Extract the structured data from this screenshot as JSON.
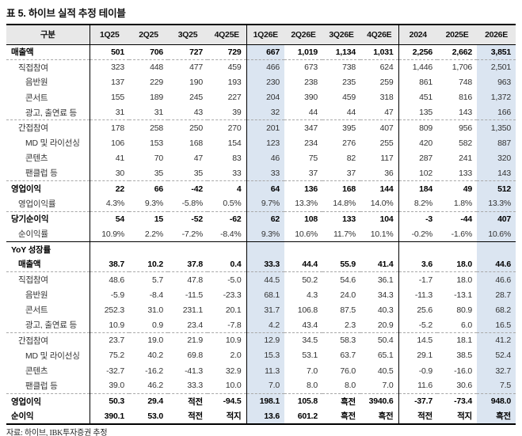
{
  "title": "표 5. 하이브 실적 추정 테이블",
  "source": "자료: 하이브, IBK투자증권 추정",
  "colors": {
    "highlight": "#dbe5f1",
    "header_bg": "#e8e8e8",
    "border": "#000000"
  },
  "table": {
    "columns": [
      "구분",
      "1Q25",
      "2Q25",
      "3Q25",
      "4Q25E",
      "1Q26E",
      "2Q26E",
      "3Q26E",
      "4Q26E",
      "2024",
      "2025E",
      "2026E"
    ],
    "highlight_columns": [
      "4Q25E",
      "2025E",
      "2026E"
    ],
    "rows": [
      {
        "label": "매출액",
        "indent": 0,
        "bold": true,
        "top": "none",
        "values": [
          "501",
          "706",
          "727",
          "729",
          "667",
          "1,019",
          "1,134",
          "1,031",
          "2,256",
          "2,662",
          "3,851"
        ]
      },
      {
        "label": "직접참여",
        "indent": 1,
        "bold": false,
        "top": "dashed",
        "values": [
          "323",
          "448",
          "477",
          "459",
          "466",
          "673",
          "738",
          "624",
          "1,446",
          "1,706",
          "2,501"
        ]
      },
      {
        "label": "음반원",
        "indent": 2,
        "bold": false,
        "top": "none",
        "values": [
          "137",
          "229",
          "190",
          "193",
          "230",
          "238",
          "235",
          "259",
          "861",
          "748",
          "963"
        ]
      },
      {
        "label": "콘서트",
        "indent": 2,
        "bold": false,
        "top": "none",
        "values": [
          "155",
          "189",
          "245",
          "227",
          "204",
          "390",
          "459",
          "318",
          "451",
          "816",
          "1,372"
        ]
      },
      {
        "label": "광고, 출연료 등",
        "indent": 2,
        "bold": false,
        "top": "none",
        "values": [
          "31",
          "31",
          "43",
          "39",
          "32",
          "44",
          "44",
          "47",
          "135",
          "143",
          "166"
        ]
      },
      {
        "label": "간접참여",
        "indent": 1,
        "bold": false,
        "top": "dashed",
        "values": [
          "178",
          "258",
          "250",
          "270",
          "201",
          "347",
          "395",
          "407",
          "809",
          "956",
          "1,350"
        ]
      },
      {
        "label": "MD 및 라이선싱",
        "indent": 2,
        "bold": false,
        "top": "none",
        "values": [
          "106",
          "153",
          "168",
          "154",
          "123",
          "234",
          "276",
          "255",
          "420",
          "582",
          "887"
        ]
      },
      {
        "label": "콘텐츠",
        "indent": 2,
        "bold": false,
        "top": "none",
        "values": [
          "41",
          "70",
          "47",
          "83",
          "46",
          "75",
          "82",
          "117",
          "287",
          "241",
          "320"
        ]
      },
      {
        "label": "팬클럽 등",
        "indent": 2,
        "bold": false,
        "top": "none",
        "values": [
          "30",
          "35",
          "35",
          "33",
          "33",
          "37",
          "37",
          "36",
          "102",
          "133",
          "143"
        ]
      },
      {
        "label": "영업이익",
        "indent": 0,
        "bold": true,
        "top": "dashed",
        "values": [
          "22",
          "66",
          "-42",
          "4",
          "64",
          "136",
          "168",
          "144",
          "184",
          "49",
          "512"
        ]
      },
      {
        "label": "영업이익률",
        "indent": 1,
        "bold": false,
        "top": "none",
        "values": [
          "4.3%",
          "9.3%",
          "-5.8%",
          "0.5%",
          "9.7%",
          "13.3%",
          "14.8%",
          "14.0%",
          "8.2%",
          "1.8%",
          "13.3%"
        ]
      },
      {
        "label": "당기순이익",
        "indent": 0,
        "bold": true,
        "top": "dashed",
        "values": [
          "54",
          "15",
          "-52",
          "-62",
          "62",
          "108",
          "133",
          "104",
          "-3",
          "-44",
          "407"
        ]
      },
      {
        "label": "순이익률",
        "indent": 1,
        "bold": false,
        "top": "none",
        "values": [
          "10.9%",
          "2.2%",
          "-7.2%",
          "-8.4%",
          "9.3%",
          "10.6%",
          "11.7%",
          "10.1%",
          "-0.2%",
          "-1.6%",
          "10.6%"
        ]
      },
      {
        "label": "YoY 성장률",
        "indent": 0,
        "bold": true,
        "top": "solid",
        "values": [
          "",
          "",
          "",
          "",
          "",
          "",
          "",
          "",
          "",
          "",
          ""
        ]
      },
      {
        "label": "매출액",
        "indent": 1,
        "bold": true,
        "top": "none",
        "values": [
          "38.7",
          "10.2",
          "37.8",
          "0.4",
          "33.3",
          "44.4",
          "55.9",
          "41.4",
          "3.6",
          "18.0",
          "44.6"
        ]
      },
      {
        "label": "직접참여",
        "indent": 1,
        "bold": false,
        "top": "dashed",
        "values": [
          "48.6",
          "5.7",
          "47.8",
          "-5.0",
          "44.5",
          "50.2",
          "54.6",
          "36.1",
          "-1.7",
          "18.0",
          "46.6"
        ]
      },
      {
        "label": "음반원",
        "indent": 2,
        "bold": false,
        "top": "none",
        "values": [
          "-5.9",
          "-8.4",
          "-11.5",
          "-23.3",
          "68.1",
          "4.3",
          "24.0",
          "34.3",
          "-11.3",
          "-13.1",
          "28.7"
        ]
      },
      {
        "label": "콘서트",
        "indent": 2,
        "bold": false,
        "top": "none",
        "values": [
          "252.3",
          "31.0",
          "231.1",
          "20.1",
          "31.7",
          "106.8",
          "87.5",
          "40.3",
          "25.6",
          "80.9",
          "68.2"
        ]
      },
      {
        "label": "광고, 출연료 등",
        "indent": 2,
        "bold": false,
        "top": "none",
        "values": [
          "10.9",
          "0.9",
          "23.4",
          "-7.8",
          "4.2",
          "43.4",
          "2.3",
          "20.9",
          "-5.2",
          "6.0",
          "16.5"
        ]
      },
      {
        "label": "간접참여",
        "indent": 1,
        "bold": false,
        "top": "dashed",
        "values": [
          "23.7",
          "19.0",
          "21.9",
          "10.9",
          "12.9",
          "34.5",
          "58.3",
          "50.4",
          "14.5",
          "18.1",
          "41.2"
        ]
      },
      {
        "label": "MD 및 라이선싱",
        "indent": 2,
        "bold": false,
        "top": "none",
        "values": [
          "75.2",
          "40.2",
          "69.8",
          "2.0",
          "15.3",
          "53.1",
          "63.7",
          "65.1",
          "29.1",
          "38.5",
          "52.4"
        ]
      },
      {
        "label": "콘텐츠",
        "indent": 2,
        "bold": false,
        "top": "none",
        "values": [
          "-32.7",
          "-16.2",
          "-41.3",
          "32.9",
          "11.3",
          "7.0",
          "76.0",
          "40.5",
          "-0.9",
          "-16.0",
          "32.7"
        ]
      },
      {
        "label": "팬클럽 등",
        "indent": 2,
        "bold": false,
        "top": "none",
        "values": [
          "39.0",
          "46.2",
          "33.3",
          "10.0",
          "7.0",
          "8.0",
          "8.0",
          "7.0",
          "11.6",
          "30.6",
          "7.5"
        ]
      },
      {
        "label": "영업이익",
        "indent": 0,
        "bold": true,
        "top": "dashed",
        "values": [
          "50.3",
          "29.4",
          "적전",
          "-94.5",
          "198.1",
          "105.8",
          "흑전",
          "3940.6",
          "-37.7",
          "-73.4",
          "948.0"
        ]
      },
      {
        "label": "순이익",
        "indent": 0,
        "bold": true,
        "top": "none",
        "values": [
          "390.1",
          "53.0",
          "적전",
          "적지",
          "13.6",
          "601.2",
          "흑전",
          "흑전",
          "적전",
          "적지",
          "흑전"
        ]
      }
    ]
  }
}
